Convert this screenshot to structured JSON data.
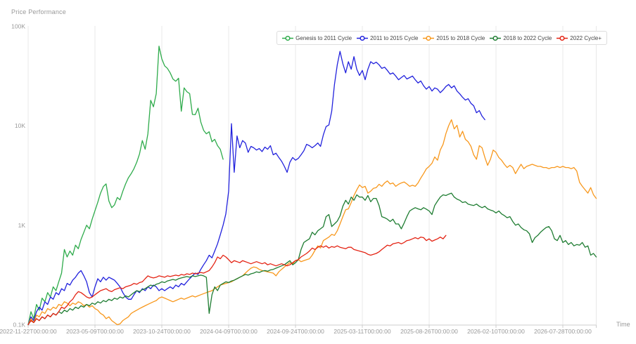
{
  "chart_data": {
    "type": "line",
    "title": "Price Performance",
    "xlabel": "Time",
    "ylabel": "Price Performance",
    "y_scale": "log",
    "y_unit": "K",
    "ylim": [
      0.1,
      100
    ],
    "y_tick_labels": [
      "100K",
      "10K",
      "1K",
      "0.1K"
    ],
    "x_tick_labels": [
      "2022-11-22T00:00:00",
      "2023-05-09T00:00:00",
      "2023-10-24T00:00:00",
      "2024-04-09T00:00:00",
      "2024-09-24T00:00:00",
      "2025-03-11T00:00:00",
      "2025-08-26T00:00:00",
      "2026-02-10T00:00:00",
      "2026-07-28T00:00:00"
    ],
    "x_tick_interval_weeks": 24,
    "x_range_weeks": [
      0,
      204
    ],
    "grid": "vertical",
    "legend_position": "top-right",
    "style": {
      "background": "#ffffff",
      "grid_color": "#e8e8e8",
      "axis_color": "#cccccc",
      "tick_text_color": "#999999",
      "title_text_color": "#999999",
      "legend_border_color": "#dddddd",
      "legend_text_color": "#444444"
    },
    "series": [
      {
        "name": "Genesis to 2011 Cycle",
        "color": "#2eab4b",
        "start_week": 0,
        "step_weeks": 1,
        "values_k": [
          0.1,
          0.135,
          0.115,
          0.16,
          0.14,
          0.185,
          0.17,
          0.21,
          0.19,
          0.24,
          0.22,
          0.27,
          0.33,
          0.57,
          0.48,
          0.55,
          0.5,
          0.63,
          0.58,
          0.72,
          0.85,
          1.0,
          0.92,
          1.15,
          1.4,
          1.7,
          2.1,
          2.45,
          2.6,
          1.75,
          1.5,
          1.6,
          1.9,
          1.8,
          2.2,
          2.6,
          3.0,
          3.3,
          3.7,
          4.3,
          5.2,
          7.1,
          5.8,
          8.3,
          18.0,
          15.5,
          21.0,
          63.0,
          47.0,
          40.0,
          37.8,
          34.0,
          29.5,
          28.0,
          30.0,
          14.0,
          24.0,
          22.0,
          21.0,
          13.0,
          12.9,
          15.0,
          10.9,
          9.0,
          8.3,
          8.7,
          6.9,
          7.3,
          6.3,
          5.8,
          4.6
        ]
      },
      {
        "name": "2011 to 2015 Cycle",
        "color": "#2222dd",
        "start_week": 0,
        "step_weeks": 1,
        "values_k": [
          0.1,
          0.12,
          0.11,
          0.135,
          0.15,
          0.14,
          0.17,
          0.16,
          0.19,
          0.18,
          0.21,
          0.2,
          0.23,
          0.22,
          0.26,
          0.25,
          0.28,
          0.3,
          0.33,
          0.35,
          0.31,
          0.27,
          0.21,
          0.19,
          0.24,
          0.29,
          0.27,
          0.3,
          0.28,
          0.3,
          0.29,
          0.28,
          0.26,
          0.24,
          0.21,
          0.19,
          0.18,
          0.18,
          0.2,
          0.22,
          0.21,
          0.23,
          0.22,
          0.24,
          0.23,
          0.25,
          0.24,
          0.22,
          0.23,
          0.22,
          0.23,
          0.24,
          0.23,
          0.25,
          0.24,
          0.26,
          0.25,
          0.27,
          0.29,
          0.31,
          0.33,
          0.32,
          0.36,
          0.4,
          0.44,
          0.5,
          0.47,
          0.55,
          0.65,
          0.8,
          1.0,
          1.3,
          2.2,
          10.5,
          3.4,
          7.9,
          6.0,
          7.1,
          6.7,
          5.4,
          6.2,
          6.0,
          5.7,
          5.9,
          5.5,
          6.1,
          5.8,
          6.3,
          5.1,
          5.3,
          4.8,
          4.4,
          3.9,
          3.4,
          4.3,
          4.8,
          4.5,
          4.7,
          5.1,
          5.6,
          6.5,
          6.3,
          6.0,
          6.3,
          6.7,
          6.2,
          8.1,
          9.8,
          10.2,
          14.0,
          26.0,
          41.0,
          56.0,
          42.0,
          34.0,
          44.0,
          37.0,
          49.5,
          37.0,
          32.0,
          36.0,
          29.0,
          37.0,
          44.0,
          42.0,
          43.5,
          41.0,
          37.7,
          38.8,
          36.0,
          33.0,
          34.0,
          31.6,
          29.0,
          30.5,
          32.0,
          29.5,
          30.5,
          31.6,
          29.0,
          26.9,
          28.2,
          25.2,
          23.3,
          24.8,
          22.3,
          24.0,
          23.3,
          21.5,
          22.9,
          24.8,
          26.0,
          24.0,
          25.2,
          22.3,
          20.9,
          19.3,
          18.1,
          18.7,
          16.8,
          15.9,
          13.5,
          14.2,
          12.5,
          11.5
        ]
      },
      {
        "name": "2015 to 2018 Cycle",
        "color": "#f8981d",
        "start_week": 0,
        "step_weeks": 1,
        "values_k": [
          0.1,
          0.115,
          0.105,
          0.125,
          0.12,
          0.135,
          0.13,
          0.145,
          0.14,
          0.15,
          0.145,
          0.16,
          0.155,
          0.17,
          0.165,
          0.155,
          0.165,
          0.16,
          0.17,
          0.165,
          0.155,
          0.16,
          0.15,
          0.155,
          0.145,
          0.14,
          0.13,
          0.125,
          0.115,
          0.12,
          0.11,
          0.105,
          0.1,
          0.102,
          0.11,
          0.115,
          0.12,
          0.13,
          0.135,
          0.14,
          0.145,
          0.15,
          0.155,
          0.16,
          0.165,
          0.17,
          0.175,
          0.185,
          0.19,
          0.185,
          0.18,
          0.175,
          0.17,
          0.175,
          0.18,
          0.185,
          0.18,
          0.185,
          0.19,
          0.195,
          0.19,
          0.195,
          0.2,
          0.205,
          0.21,
          0.215,
          0.22,
          0.23,
          0.24,
          0.25,
          0.255,
          0.26,
          0.265,
          0.27,
          0.28,
          0.29,
          0.3,
          0.31,
          0.33,
          0.35,
          0.37,
          0.38,
          0.375,
          0.36,
          0.35,
          0.345,
          0.34,
          0.335,
          0.33,
          0.31,
          0.34,
          0.36,
          0.38,
          0.4,
          0.42,
          0.41,
          0.44,
          0.45,
          0.43,
          0.44,
          0.45,
          0.46,
          0.5,
          0.56,
          0.62,
          0.59,
          0.7,
          0.73,
          0.76,
          0.81,
          0.79,
          0.88,
          1.03,
          1.22,
          1.43,
          1.46,
          1.69,
          1.99,
          2.27,
          2.54,
          2.39,
          2.46,
          2.1,
          2.2,
          2.35,
          2.39,
          2.58,
          2.46,
          2.66,
          2.79,
          2.6,
          2.66,
          2.46,
          2.58,
          2.66,
          2.72,
          2.6,
          2.46,
          2.52,
          2.46,
          2.66,
          2.98,
          3.3,
          3.69,
          3.9,
          4.19,
          4.85,
          4.5,
          5.7,
          6.5,
          8.34,
          10.0,
          11.5,
          9.3,
          10.1,
          7.7,
          8.8,
          7.3,
          6.9,
          6.2,
          5.1,
          4.6,
          6.3,
          6.0,
          4.8,
          4.0,
          4.6,
          5.7,
          5.4,
          4.8,
          4.5,
          4.1,
          3.8,
          4.0,
          3.8,
          3.3,
          3.7,
          4.1,
          3.7,
          3.9,
          4.0,
          4.1,
          4.0,
          3.9,
          3.9,
          3.8,
          3.8,
          3.7,
          3.8,
          3.8,
          3.9,
          3.8,
          3.9,
          3.8,
          3.8,
          3.7,
          3.8,
          3.5,
          2.7,
          2.46,
          2.27,
          2.1,
          2.39,
          2.03,
          1.86
        ]
      },
      {
        "name": "2018 to 2022 Cycle",
        "color": "#1f7d32",
        "start_week": 0,
        "step_weeks": 1,
        "values_k": [
          0.1,
          0.11,
          0.105,
          0.115,
          0.11,
          0.12,
          0.115,
          0.125,
          0.12,
          0.13,
          0.125,
          0.135,
          0.13,
          0.14,
          0.135,
          0.145,
          0.14,
          0.15,
          0.145,
          0.155,
          0.15,
          0.16,
          0.155,
          0.165,
          0.16,
          0.17,
          0.165,
          0.175,
          0.17,
          0.18,
          0.175,
          0.185,
          0.18,
          0.19,
          0.185,
          0.195,
          0.19,
          0.2,
          0.21,
          0.22,
          0.215,
          0.225,
          0.23,
          0.24,
          0.25,
          0.245,
          0.255,
          0.26,
          0.27,
          0.265,
          0.275,
          0.28,
          0.285,
          0.28,
          0.29,
          0.295,
          0.3,
          0.305,
          0.3,
          0.31,
          0.305,
          0.31,
          0.315,
          0.31,
          0.3,
          0.13,
          0.2,
          0.24,
          0.22,
          0.25,
          0.26,
          0.27,
          0.265,
          0.275,
          0.28,
          0.29,
          0.3,
          0.31,
          0.32,
          0.315,
          0.325,
          0.33,
          0.34,
          0.335,
          0.345,
          0.35,
          0.345,
          0.355,
          0.36,
          0.37,
          0.38,
          0.39,
          0.4,
          0.42,
          0.44,
          0.4,
          0.42,
          0.45,
          0.57,
          0.67,
          0.7,
          0.73,
          0.85,
          0.8,
          0.88,
          0.92,
          0.97,
          1.22,
          1.28,
          0.97,
          1.03,
          1.1,
          1.24,
          1.55,
          1.78,
          1.63,
          1.92,
          1.78,
          2.02,
          1.92,
          1.92,
          1.78,
          1.99,
          1.72,
          1.86,
          1.86,
          1.58,
          1.22,
          1.19,
          1.15,
          1.09,
          1.15,
          1.03,
          1.03,
          0.92,
          1.05,
          1.22,
          1.39,
          1.45,
          1.5,
          1.46,
          1.43,
          1.5,
          1.45,
          1.39,
          1.28,
          1.58,
          1.75,
          1.92,
          2.02,
          1.99,
          2.05,
          2.1,
          1.92,
          1.83,
          1.78,
          1.69,
          1.72,
          1.63,
          1.6,
          1.58,
          1.63,
          1.55,
          1.5,
          1.55,
          1.46,
          1.42,
          1.39,
          1.33,
          1.39,
          1.3,
          1.25,
          1.19,
          1.22,
          1.09,
          1.0,
          1.03,
          0.95,
          0.9,
          0.88,
          0.82,
          0.67,
          0.75,
          0.79,
          0.85,
          0.9,
          0.95,
          0.97,
          0.88,
          0.73,
          0.7,
          0.79,
          0.67,
          0.7,
          0.64,
          0.67,
          0.62,
          0.64,
          0.63,
          0.67,
          0.6,
          0.62,
          0.5,
          0.52,
          0.48
        ]
      },
      {
        "name": "2022 Cycle+",
        "color": "#e42313",
        "start_week": 0,
        "step_weeks": 1,
        "values_k": [
          0.1,
          0.11,
          0.105,
          0.115,
          0.11,
          0.12,
          0.115,
          0.125,
          0.12,
          0.13,
          0.125,
          0.135,
          0.15,
          0.145,
          0.155,
          0.17,
          0.18,
          0.2,
          0.215,
          0.21,
          0.2,
          0.19,
          0.185,
          0.19,
          0.2,
          0.21,
          0.22,
          0.225,
          0.23,
          0.22,
          0.215,
          0.225,
          0.23,
          0.235,
          0.23,
          0.24,
          0.245,
          0.25,
          0.26,
          0.255,
          0.265,
          0.27,
          0.29,
          0.31,
          0.3,
          0.295,
          0.3,
          0.31,
          0.305,
          0.3,
          0.31,
          0.305,
          0.31,
          0.315,
          0.31,
          0.32,
          0.315,
          0.325,
          0.32,
          0.33,
          0.325,
          0.33,
          0.335,
          0.33,
          0.34,
          0.35,
          0.38,
          0.42,
          0.48,
          0.46,
          0.5,
          0.48,
          0.45,
          0.42,
          0.44,
          0.43,
          0.42,
          0.44,
          0.43,
          0.42,
          0.41,
          0.42,
          0.43,
          0.42,
          0.41,
          0.42,
          0.4,
          0.41,
          0.4,
          0.39,
          0.4,
          0.41,
          0.4,
          0.39,
          0.4,
          0.42,
          0.44,
          0.45,
          0.48,
          0.5,
          0.52,
          0.55,
          0.59,
          0.57,
          0.6,
          0.62,
          0.6,
          0.62,
          0.59,
          0.61,
          0.6,
          0.62,
          0.6,
          0.59,
          0.58,
          0.6,
          0.6,
          0.57,
          0.56,
          0.55,
          0.54,
          0.53,
          0.51,
          0.5,
          0.51,
          0.52,
          0.54,
          0.57,
          0.6,
          0.63,
          0.62,
          0.65,
          0.66,
          0.67,
          0.65,
          0.67,
          0.7,
          0.71,
          0.73,
          0.75,
          0.73,
          0.76,
          0.75,
          0.7,
          0.73,
          0.69,
          0.71,
          0.73,
          0.76,
          0.73,
          0.79
        ]
      }
    ]
  }
}
